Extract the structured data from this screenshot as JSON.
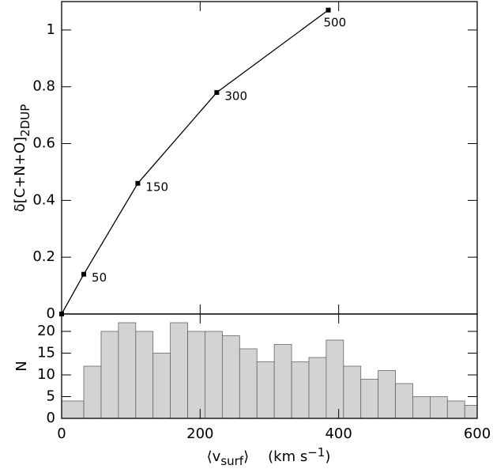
{
  "chart_data": [
    {
      "type": "line",
      "x": [
        0,
        32,
        110,
        224,
        385
      ],
      "values": [
        0,
        0.14,
        0.46,
        0.78,
        1.07
      ],
      "point_labels": [
        null,
        "50",
        "150",
        "300",
        "500"
      ],
      "color": "#000000",
      "xlim": [
        0,
        600
      ],
      "xticks": [
        0,
        200,
        400,
        600
      ],
      "ylim": [
        0,
        1.1
      ],
      "yticks": [
        0,
        0.2,
        0.4,
        0.6,
        0.8,
        1
      ],
      "y_label": "δ[C+N+O]",
      "y_label_sub": "2DUP"
    },
    {
      "type": "histogram",
      "bins": [
        0,
        32,
        57,
        82,
        107,
        132,
        157,
        182,
        207,
        232,
        257,
        282,
        307,
        332,
        357,
        382,
        407,
        432,
        457,
        482,
        507,
        532,
        557,
        582,
        600
      ],
      "values": [
        4,
        12,
        20,
        22,
        20,
        15,
        22,
        20,
        20,
        19,
        16,
        13,
        17,
        13,
        14,
        18,
        12,
        9,
        11,
        8,
        5,
        5,
        4,
        3
      ],
      "color": "#d3d3d3",
      "xlim": [
        0,
        600
      ],
      "xticks": [
        0,
        200,
        400,
        600
      ],
      "ylim": [
        0,
        24
      ],
      "yticks": [
        0,
        5,
        10,
        15,
        20
      ],
      "y_label": "N",
      "x_label": {
        "open": "⟨v",
        "sub": "surf",
        "close": "⟩",
        "units": "(km s",
        "sup": "−1",
        "units_end": ")"
      }
    }
  ]
}
